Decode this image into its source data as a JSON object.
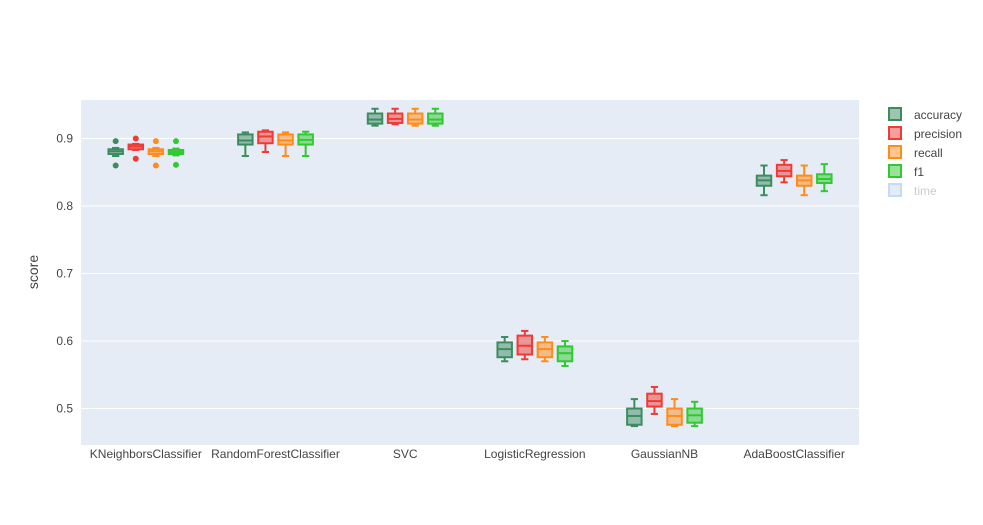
{
  "chart_data": {
    "type": "box",
    "title": "",
    "xlabel": "",
    "ylabel": "score",
    "ylim": [
      0.446,
      0.957
    ],
    "yticks": [
      0.5,
      0.6,
      0.7,
      0.8,
      0.9
    ],
    "ytick_labels": [
      "0.5",
      "0.6",
      "0.7",
      "0.8",
      "0.9"
    ],
    "grid": true,
    "legend_position": "top-right",
    "categories": [
      "KNeighborsClassifier",
      "RandomForestClassifier",
      "SVC",
      "LogisticRegression",
      "GaussianNB",
      "AdaBoostClassifier"
    ],
    "series": [
      {
        "name": "accuracy",
        "color": "#3d8c5f",
        "visible": true,
        "boxes": [
          {
            "min": 0.874,
            "q1": 0.877,
            "median": 0.881,
            "q3": 0.884,
            "max": 0.886,
            "outliers": [
              0.896,
              0.86
            ]
          },
          {
            "min": 0.874,
            "q1": 0.891,
            "median": 0.897,
            "q3": 0.906,
            "max": 0.909,
            "outliers": []
          },
          {
            "min": 0.919,
            "q1": 0.922,
            "median": 0.928,
            "q3": 0.937,
            "max": 0.944,
            "outliers": []
          },
          {
            "min": 0.57,
            "q1": 0.576,
            "median": 0.588,
            "q3": 0.598,
            "max": 0.606,
            "outliers": []
          },
          {
            "min": 0.474,
            "q1": 0.476,
            "median": 0.489,
            "q3": 0.5,
            "max": 0.514,
            "outliers": []
          },
          {
            "min": 0.816,
            "q1": 0.83,
            "median": 0.838,
            "q3": 0.845,
            "max": 0.86,
            "outliers": []
          }
        ]
      },
      {
        "name": "precision",
        "color": "#ef3b36",
        "visible": true,
        "boxes": [
          {
            "min": 0.883,
            "q1": 0.884,
            "median": 0.888,
            "q3": 0.891,
            "max": 0.892,
            "outliers": [
              0.9,
              0.87
            ]
          },
          {
            "min": 0.88,
            "q1": 0.893,
            "median": 0.903,
            "q3": 0.91,
            "max": 0.912,
            "outliers": []
          },
          {
            "min": 0.921,
            "q1": 0.923,
            "median": 0.929,
            "q3": 0.937,
            "max": 0.944,
            "outliers": []
          },
          {
            "min": 0.573,
            "q1": 0.58,
            "median": 0.593,
            "q3": 0.608,
            "max": 0.615,
            "outliers": []
          },
          {
            "min": 0.492,
            "q1": 0.503,
            "median": 0.511,
            "q3": 0.522,
            "max": 0.532,
            "outliers": []
          },
          {
            "min": 0.835,
            "q1": 0.844,
            "median": 0.852,
            "q3": 0.861,
            "max": 0.868,
            "outliers": []
          }
        ]
      },
      {
        "name": "recall",
        "color": "#ff8c1a",
        "visible": true,
        "boxes": [
          {
            "min": 0.874,
            "q1": 0.877,
            "median": 0.881,
            "q3": 0.884,
            "max": 0.886,
            "outliers": [
              0.896,
              0.86
            ]
          },
          {
            "min": 0.874,
            "q1": 0.891,
            "median": 0.897,
            "q3": 0.906,
            "max": 0.909,
            "outliers": []
          },
          {
            "min": 0.919,
            "q1": 0.922,
            "median": 0.928,
            "q3": 0.937,
            "max": 0.944,
            "outliers": []
          },
          {
            "min": 0.57,
            "q1": 0.576,
            "median": 0.588,
            "q3": 0.598,
            "max": 0.606,
            "outliers": []
          },
          {
            "min": 0.474,
            "q1": 0.476,
            "median": 0.489,
            "q3": 0.5,
            "max": 0.514,
            "outliers": []
          },
          {
            "min": 0.816,
            "q1": 0.83,
            "median": 0.838,
            "q3": 0.845,
            "max": 0.86,
            "outliers": []
          }
        ]
      },
      {
        "name": "f1",
        "color": "#32c832",
        "visible": true,
        "boxes": [
          {
            "min": 0.875,
            "q1": 0.877,
            "median": 0.88,
            "q3": 0.883,
            "max": 0.885,
            "outliers": [
              0.896,
              0.861
            ]
          },
          {
            "min": 0.874,
            "q1": 0.891,
            "median": 0.898,
            "q3": 0.906,
            "max": 0.91,
            "outliers": []
          },
          {
            "min": 0.919,
            "q1": 0.922,
            "median": 0.928,
            "q3": 0.937,
            "max": 0.944,
            "outliers": []
          },
          {
            "min": 0.563,
            "q1": 0.57,
            "median": 0.582,
            "q3": 0.592,
            "max": 0.6,
            "outliers": []
          },
          {
            "min": 0.474,
            "q1": 0.479,
            "median": 0.49,
            "q3": 0.5,
            "max": 0.51,
            "outliers": []
          },
          {
            "min": 0.822,
            "q1": 0.834,
            "median": 0.84,
            "q3": 0.847,
            "max": 0.862,
            "outliers": []
          }
        ]
      },
      {
        "name": "time",
        "color": "#8fb4f0",
        "visible": false,
        "boxes": []
      }
    ]
  }
}
